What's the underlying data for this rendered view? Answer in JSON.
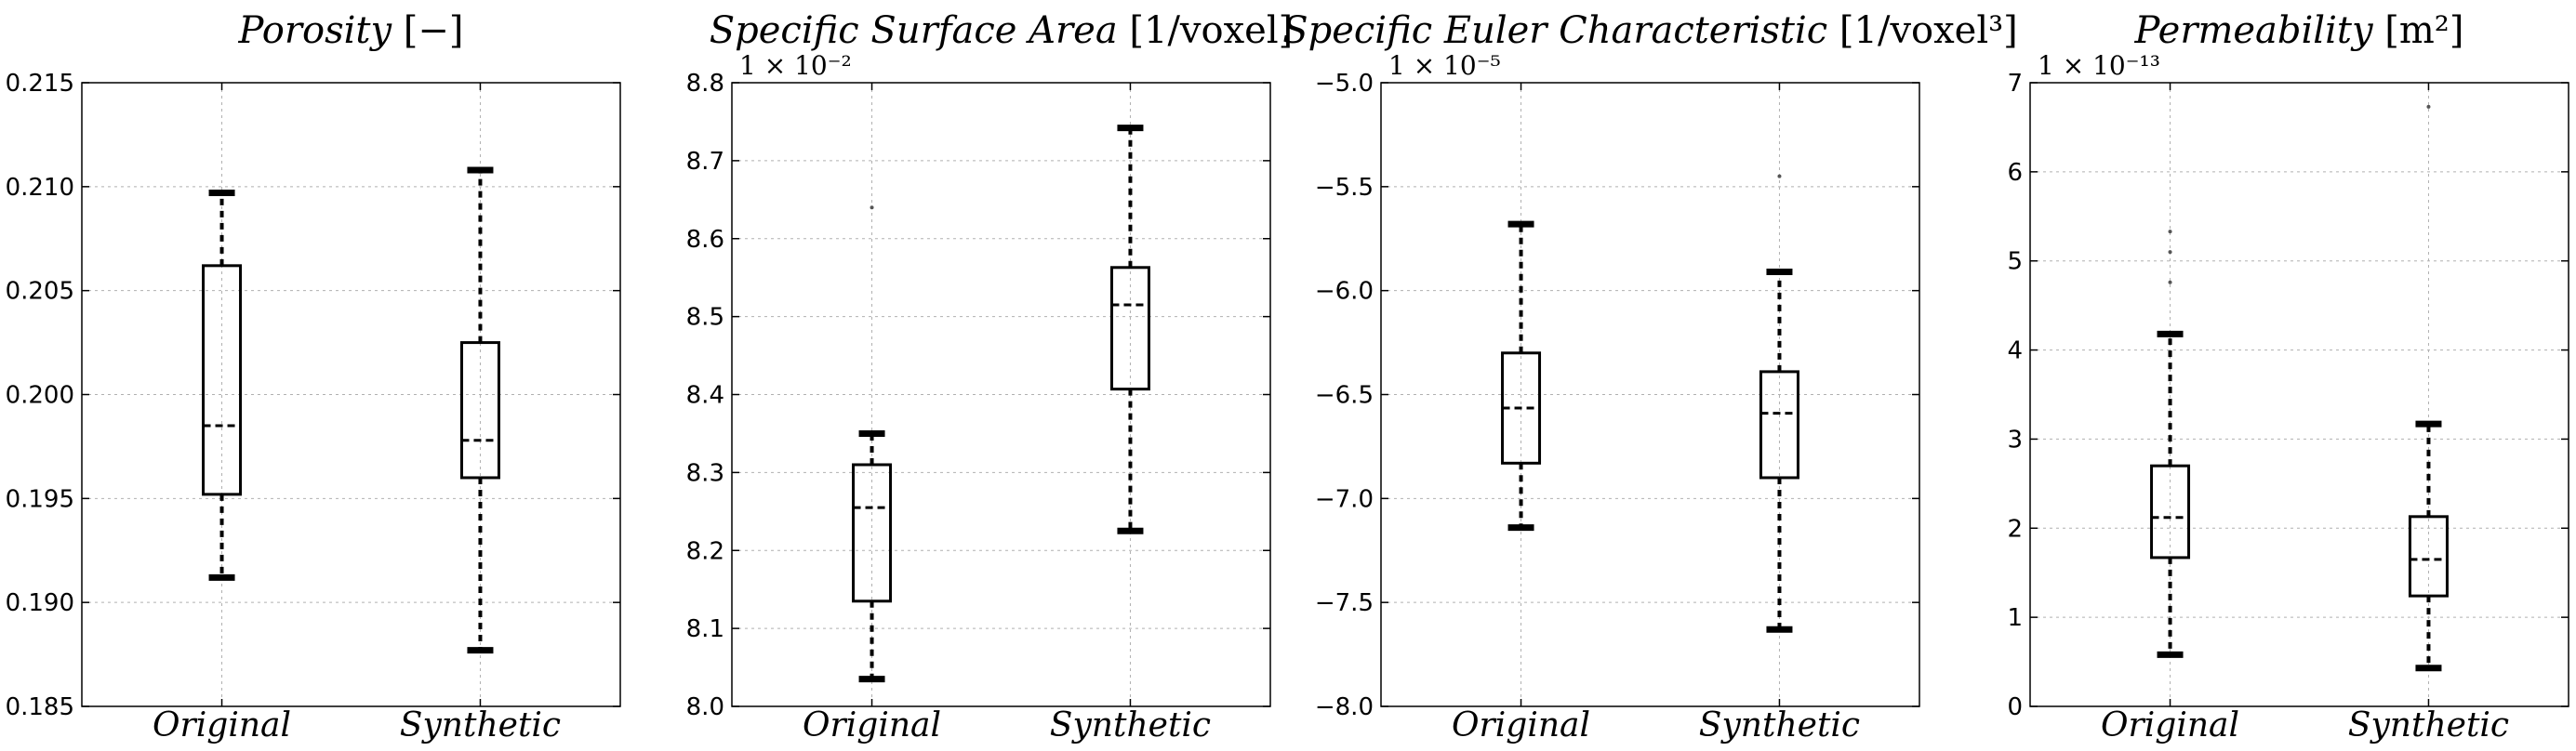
{
  "chart_data": [
    {
      "type": "boxplot",
      "title": "Porosity",
      "unit": "[−]",
      "categories": [
        "Original",
        "Synthetic"
      ],
      "ylim": [
        0.185,
        0.215
      ],
      "yticks": [
        "0.185",
        "0.190",
        "0.195",
        "0.200",
        "0.205",
        "0.210",
        "0.215"
      ],
      "multiplier": "",
      "boxes": [
        {
          "name": "Original",
          "whislo": 0.1912,
          "q1": 0.1952,
          "med": 0.1985,
          "q3": 0.2062,
          "whishi": 0.2097,
          "fliers": []
        },
        {
          "name": "Synthetic",
          "whislo": 0.1877,
          "q1": 0.196,
          "med": 0.1978,
          "q3": 0.2025,
          "whishi": 0.2108,
          "fliers": []
        }
      ]
    },
    {
      "type": "boxplot",
      "title": "Specific Surface Area",
      "unit": "[1/voxel]",
      "categories": [
        "Original",
        "Synthetic"
      ],
      "ylim": [
        8.0,
        8.8
      ],
      "yticks": [
        "8.0",
        "8.1",
        "8.2",
        "8.3",
        "8.4",
        "8.5",
        "8.6",
        "8.7",
        "8.8"
      ],
      "multiplier": "1 × 10⁻²",
      "boxes": [
        {
          "name": "Original",
          "whislo": 8.035,
          "q1": 8.135,
          "med": 8.255,
          "q3": 8.31,
          "whishi": 8.35,
          "fliers": [
            8.64
          ]
        },
        {
          "name": "Synthetic",
          "whislo": 8.225,
          "q1": 8.407,
          "med": 8.515,
          "q3": 8.563,
          "whishi": 8.742,
          "fliers": []
        }
      ]
    },
    {
      "type": "boxplot",
      "title": "Specific Euler Characteristic",
      "unit": "[1/voxel³]",
      "categories": [
        "Original",
        "Synthetic"
      ],
      "ylim": [
        -8.0,
        -5.0
      ],
      "yticks": [
        "−8.0",
        "−7.5",
        "−7.0",
        "−6.5",
        "−6.0",
        "−5.5",
        "−5.0"
      ],
      "multiplier": "1 × 10⁻⁵",
      "boxes": [
        {
          "name": "Original",
          "whislo": -7.14,
          "q1": -6.83,
          "med": -6.565,
          "q3": -6.3,
          "whishi": -5.68,
          "fliers": []
        },
        {
          "name": "Synthetic",
          "whislo": -7.63,
          "q1": -6.9,
          "med": -6.59,
          "q3": -6.39,
          "whishi": -5.91,
          "fliers": [
            -5.45
          ]
        }
      ]
    },
    {
      "type": "boxplot",
      "title": "Permeability",
      "unit": "[m²]",
      "categories": [
        "Original",
        "Synthetic"
      ],
      "ylim": [
        0,
        7
      ],
      "yticks": [
        "0",
        "1",
        "2",
        "3",
        "4",
        "5",
        "6",
        "7"
      ],
      "multiplier": "1 × 10⁻¹³",
      "boxes": [
        {
          "name": "Original",
          "whislo": 0.58,
          "q1": 1.67,
          "med": 2.12,
          "q3": 2.7,
          "whishi": 4.18,
          "fliers": [
            4.76,
            5.1,
            5.33
          ]
        },
        {
          "name": "Synthetic",
          "whislo": 0.43,
          "q1": 1.24,
          "med": 1.65,
          "q3": 2.13,
          "whishi": 3.17,
          "fliers": [
            6.73
          ]
        }
      ]
    }
  ]
}
